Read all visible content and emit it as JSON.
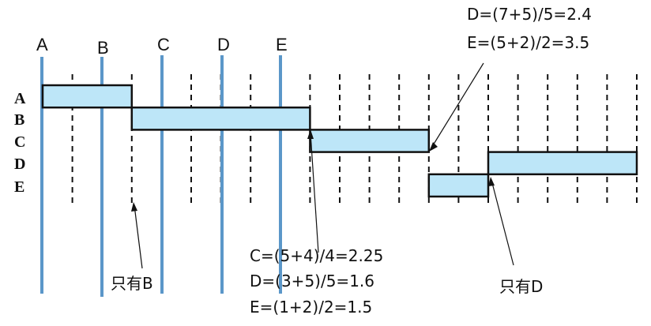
{
  "process_labels": [
    "A",
    "B",
    "C",
    "D",
    "E"
  ],
  "arrival_labels": [
    "A",
    "B",
    "C",
    "D",
    "E"
  ],
  "schedule": [
    {
      "process": "A",
      "start": 0,
      "end": 3
    },
    {
      "process": "B",
      "start": 3,
      "end": 9
    },
    {
      "process": "C",
      "start": 9,
      "end": 13
    },
    {
      "process": "E",
      "start": 13,
      "end": 15
    },
    {
      "process": "D",
      "start": 15,
      "end": 20
    }
  ],
  "annotations": {
    "only_b": "只有B",
    "only_d": "只有D",
    "at_9": [
      "C=(5+4)/4=2.25",
      "D=(3+5)/5=1.6",
      "E=(1+2)/2=1.5"
    ],
    "at_13": [
      "D=(7+5)/5=2.4",
      "E=(5+2)/2=3.5"
    ]
  }
}
